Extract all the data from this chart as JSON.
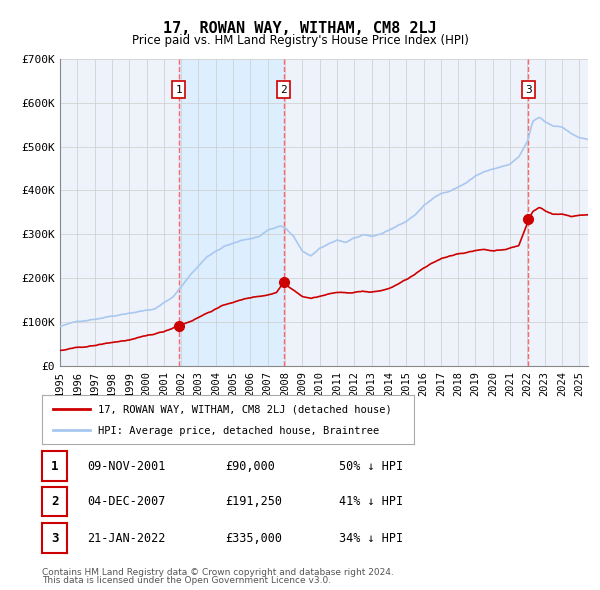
{
  "title": "17, ROWAN WAY, WITHAM, CM8 2LJ",
  "subtitle": "Price paid vs. HM Land Registry's House Price Index (HPI)",
  "legend_line1": "17, ROWAN WAY, WITHAM, CM8 2LJ (detached house)",
  "legend_line2": "HPI: Average price, detached house, Braintree",
  "footer1": "Contains HM Land Registry data © Crown copyright and database right 2024.",
  "footer2": "This data is licensed under the Open Government Licence v3.0.",
  "transactions": [
    {
      "label": "1",
      "date": "09-NOV-2001",
      "price": 90000,
      "price_str": "£90,000",
      "note": "50% ↓ HPI"
    },
    {
      "label": "2",
      "date": "04-DEC-2007",
      "price": 191250,
      "price_str": "£191,250",
      "note": "41% ↓ HPI"
    },
    {
      "label": "3",
      "date": "21-JAN-2022",
      "price": 335000,
      "price_str": "£335,000",
      "note": "34% ↓ HPI"
    }
  ],
  "transaction_dates_decimal": [
    2001.86,
    2007.92,
    2022.06
  ],
  "dot_prices": [
    90000,
    191250,
    335000
  ],
  "hpi_color": "#a8c8f0",
  "price_color": "#cc0000",
  "dot_color": "#cc0000",
  "vline_color": "#ff6666",
  "shade_color": "#ddeeff",
  "grid_color": "#cccccc",
  "background_color": "#ffffff",
  "plot_bg_color": "#eef2fa",
  "ylim": [
    0,
    700000
  ],
  "yticks": [
    0,
    100000,
    200000,
    300000,
    400000,
    500000,
    600000,
    700000
  ],
  "xstart": 1995.0,
  "xend": 2025.5
}
